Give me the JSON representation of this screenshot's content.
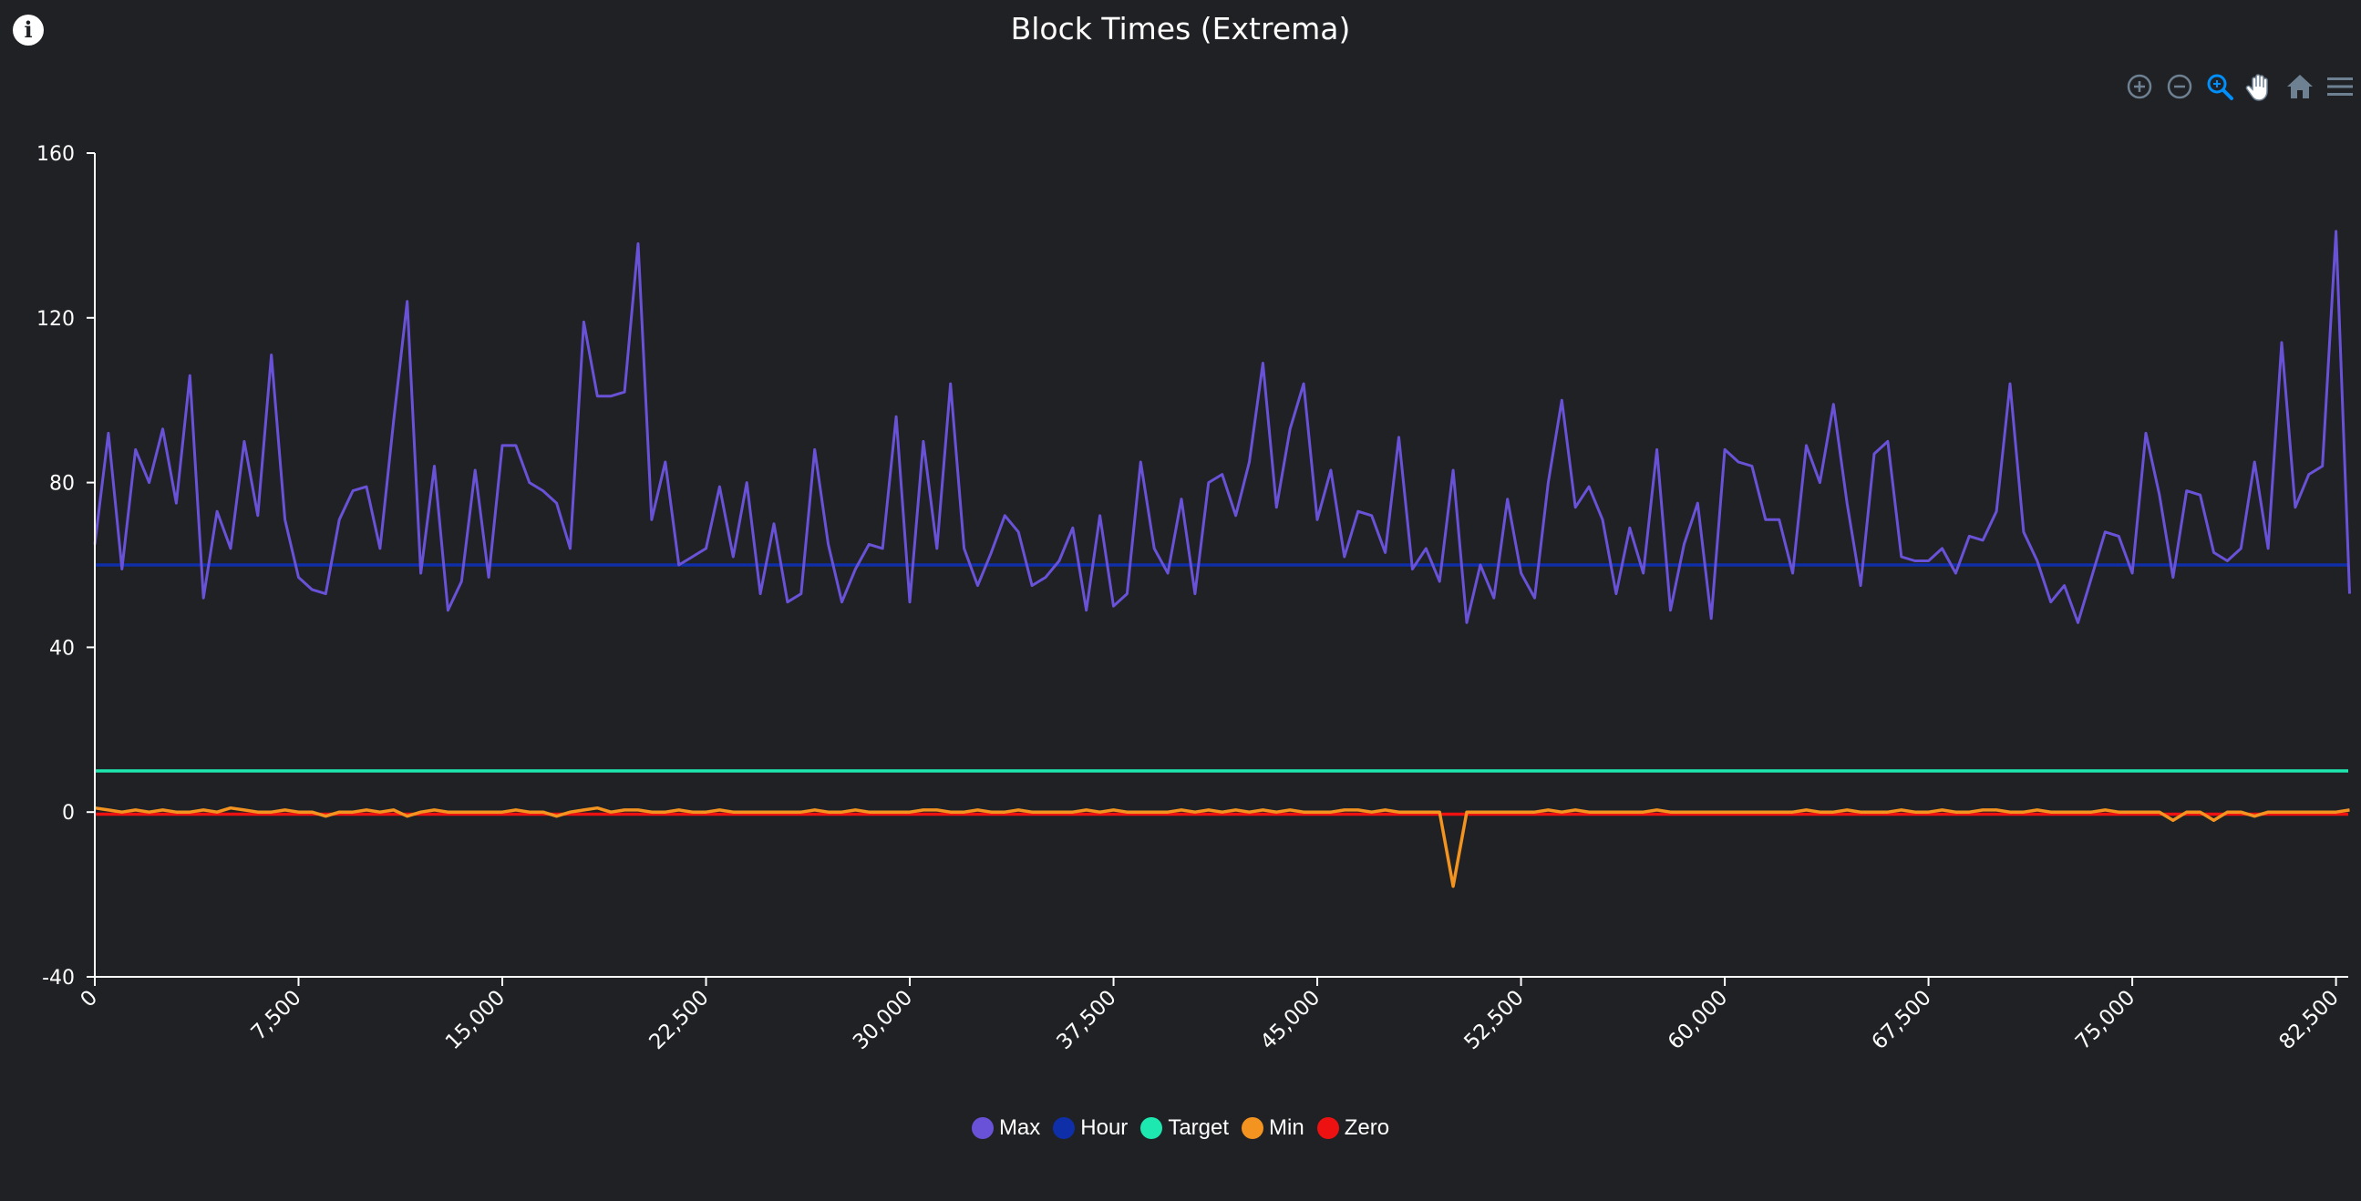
{
  "info_icon": "info-icon",
  "toolbar": {
    "icons": [
      "zoom-in-icon",
      "zoom-out-icon",
      "zoom-selection-icon",
      "pan-hand-icon",
      "reset-home-icon",
      "menu-icon"
    ],
    "active_color": "#008ffb",
    "inactive_color": "#6e8192"
  },
  "colors": {
    "background": "#202124",
    "axis": "#ffffff",
    "Max": "#6a52d8",
    "Hour": "#0f2fa8",
    "Target": "#1ce8b0",
    "Min": "#f39320",
    "Zero": "#ee1111"
  },
  "chart_data": {
    "type": "line",
    "title": "Block Times (Extrema)",
    "xlabel": "",
    "ylabel": "",
    "xlim": [
      0,
      82950
    ],
    "ylim": [
      -40,
      160
    ],
    "x_ticks": [
      "0",
      "7,500",
      "15,000",
      "22,500",
      "30,000",
      "37,500",
      "45,000",
      "52,500",
      "60,000",
      "67,500",
      "75,000",
      "82,500"
    ],
    "x_tick_values": [
      0,
      7500,
      15000,
      22500,
      30000,
      37500,
      45000,
      52500,
      60000,
      67500,
      75000,
      82500
    ],
    "y_ticks": [
      "-40",
      "0",
      "40",
      "80",
      "120",
      "160"
    ],
    "y_tick_values": [
      -40,
      0,
      40,
      80,
      120,
      160
    ],
    "legend_position": "bottom-center",
    "grid": false,
    "x_step": 500,
    "series": [
      {
        "name": "Max",
        "values": [
          65,
          92,
          59,
          88,
          80,
          93,
          75,
          106,
          52,
          73,
          64,
          90,
          72,
          111,
          71,
          57,
          54,
          53,
          71,
          78,
          79,
          64,
          95,
          124,
          58,
          84,
          49,
          56,
          83,
          57,
          89,
          89,
          80,
          78,
          75,
          64,
          119,
          101,
          101,
          102,
          138,
          71,
          85,
          60,
          62,
          64,
          79,
          62,
          80,
          53,
          70,
          51,
          53,
          88,
          65,
          51,
          59,
          65,
          64,
          96,
          51,
          90,
          64,
          104,
          64,
          55,
          63,
          72,
          68,
          55,
          57,
          61,
          69,
          49,
          72,
          50,
          53,
          85,
          64,
          58,
          76,
          53,
          80,
          82,
          72,
          85,
          109,
          74,
          93,
          104,
          71,
          83,
          62,
          73,
          72,
          63,
          91,
          59,
          64,
          56,
          83,
          46,
          60,
          52,
          76,
          58,
          52,
          80,
          100,
          74,
          79,
          71,
          53,
          69,
          58,
          88,
          49,
          65,
          75,
          47,
          88,
          85,
          84,
          71,
          71,
          58,
          89,
          80,
          99,
          75,
          55,
          87,
          90,
          62,
          61,
          61,
          64,
          58,
          67,
          66,
          73,
          104,
          68,
          61,
          51,
          55,
          46,
          57,
          68,
          67,
          58,
          92,
          77,
          57,
          78,
          77,
          63,
          61,
          64,
          85,
          64,
          114,
          74,
          82,
          84,
          141,
          53
        ]
      },
      {
        "name": "Hour",
        "values": [
          60,
          60
        ]
      },
      {
        "name": "Target",
        "values": [
          10,
          10
        ]
      },
      {
        "name": "Min",
        "values": [
          1,
          0.5,
          0,
          0.5,
          0,
          0.5,
          0,
          0,
          0.5,
          0,
          1,
          0.5,
          0,
          0,
          0.5,
          0,
          0,
          -1,
          0,
          0,
          0.5,
          0,
          0.5,
          -1,
          0,
          0.5,
          0,
          0,
          0,
          0,
          0,
          0.5,
          0,
          0,
          -1,
          0,
          0.5,
          1,
          0,
          0.5,
          0.5,
          0,
          0,
          0.5,
          0,
          0,
          0.5,
          0,
          0,
          0,
          0,
          0,
          0,
          0.5,
          0,
          0,
          0.5,
          0,
          0,
          0,
          0,
          0.5,
          0.5,
          0,
          0,
          0.5,
          0,
          0,
          0.5,
          0,
          0,
          0,
          0,
          0.5,
          0,
          0.5,
          0,
          0,
          0,
          0,
          0.5,
          0,
          0.5,
          0,
          0.5,
          0,
          0.5,
          0,
          0.5,
          0,
          0,
          0,
          0.5,
          0.5,
          0,
          0.5,
          0,
          0,
          0,
          0,
          -18,
          0,
          0,
          0,
          0,
          0,
          0,
          0.5,
          0,
          0.5,
          0,
          0,
          0,
          0,
          0,
          0.5,
          0,
          0,
          0,
          0,
          0,
          0,
          0,
          0,
          0,
          0,
          0.5,
          0,
          0,
          0.5,
          0,
          0,
          0,
          0.5,
          0,
          0,
          0.5,
          0,
          0,
          0.5,
          0.5,
          0,
          0,
          0.5,
          0,
          0,
          0,
          0,
          0.5,
          0,
          0,
          0,
          0,
          -2,
          0,
          0,
          -2,
          0,
          0,
          -1,
          0,
          0,
          0,
          0,
          0,
          0,
          0.5
        ]
      },
      {
        "name": "Zero",
        "values": [
          -0.5,
          -0.5
        ]
      }
    ]
  }
}
